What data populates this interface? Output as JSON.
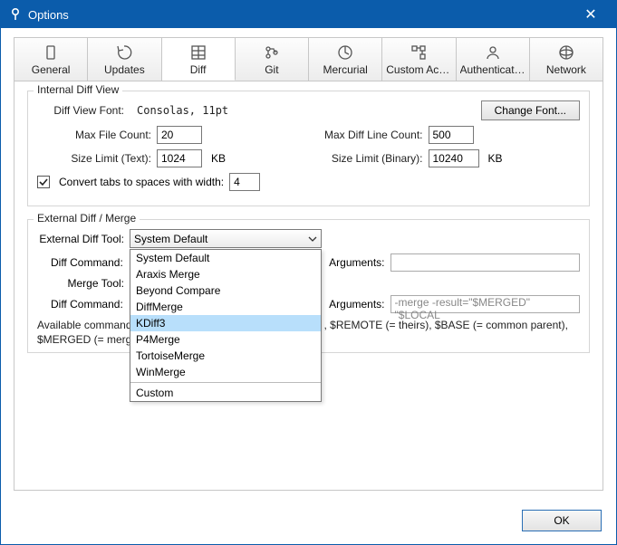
{
  "window": {
    "title": "Options",
    "close_glyph": "✕"
  },
  "tabs": [
    {
      "label": "General"
    },
    {
      "label": "Updates"
    },
    {
      "label": "Diff"
    },
    {
      "label": "Git"
    },
    {
      "label": "Mercurial"
    },
    {
      "label": "Custom Actions"
    },
    {
      "label": "Authentication"
    },
    {
      "label": "Network"
    }
  ],
  "active_tab_index": 2,
  "internal": {
    "title": "Internal Diff View",
    "font_label": "Diff View Font:",
    "font_value": "Consolas, 11pt",
    "change_font_btn": "Change Font...",
    "max_file_count_label": "Max File Count:",
    "max_file_count_value": "20",
    "max_diff_line_count_label": "Max Diff Line Count:",
    "max_diff_line_count_value": "500",
    "size_limit_text_label": "Size Limit (Text):",
    "size_limit_text_value": "1024",
    "size_limit_text_unit": "KB",
    "size_limit_binary_label": "Size Limit (Binary):",
    "size_limit_binary_value": "10240",
    "size_limit_binary_unit": "KB",
    "convert_tabs_checked": true,
    "convert_tabs_label": "Convert tabs to spaces with width:",
    "convert_tabs_value": "4"
  },
  "external": {
    "title": "External Diff / Merge",
    "diff_tool_label": "External Diff Tool:",
    "diff_tool_value": "System Default",
    "diff_cmd_label": "Diff Command:",
    "args_label": "Arguments:",
    "merge_tool_label": "Merge Tool:",
    "merge_args_placeholder": "-merge -result=\"$MERGED\" \"$LOCAL",
    "dropdown": {
      "options": [
        "System Default",
        "Araxis Merge",
        "Beyond Compare",
        "DiffMerge",
        "KDiff3",
        "P4Merge",
        "TortoiseMerge",
        "WinMerge"
      ],
      "selected_index": 4,
      "custom_label": "Custom"
    },
    "help_text_visible_1": "Available command",
    "help_text_visible_2": "$MERGED (= merge",
    "help_text_right": ", $REMOTE (= theirs), $BASE (= common parent),"
  },
  "footer": {
    "ok_label": "OK"
  },
  "colors": {
    "titlebar": "#0b5cab",
    "dropdown_selection": "#b8dffb",
    "border": "#c7c7c7"
  }
}
